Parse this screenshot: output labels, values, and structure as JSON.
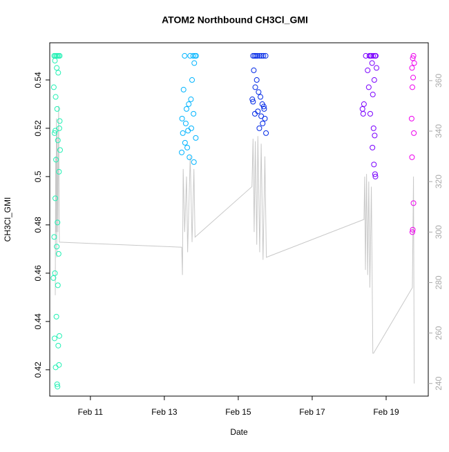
{
  "chart_data": {
    "type": "scatter",
    "title": "ATOM2 Northbound CH3Cl_GMI",
    "xlabel": "Date",
    "ylabel": "CH3Cl_GMI",
    "xlim": [
      9.9,
      20.14
    ],
    "ylim": [
      0.4091,
      0.5554
    ],
    "y2lim": [
      235,
      375
    ],
    "xticks": [
      {
        "value": 11,
        "label": "Feb 11"
      },
      {
        "value": 13,
        "label": "Feb 13"
      },
      {
        "value": 15,
        "label": "Feb 15"
      },
      {
        "value": 17,
        "label": "Feb 17"
      },
      {
        "value": 19,
        "label": "Feb 19"
      }
    ],
    "yticks": [
      0.42,
      0.44,
      0.46,
      0.48,
      0.5,
      0.52,
      0.54
    ],
    "y2ticks": [
      240,
      260,
      280,
      300,
      320,
      340,
      360
    ],
    "series": [
      {
        "color": "#22f0b4",
        "x": [
          10.02,
          10.05,
          10.08,
          10.11,
          10.14,
          10.17,
          10.04,
          10.09,
          10.13,
          10.01,
          10.06,
          10.1,
          10.16,
          10.03,
          10.12,
          10.18,
          10.07,
          10.15,
          10.05,
          10.11,
          10.02,
          10.09,
          10.14,
          10.04,
          10.0,
          10.12,
          10.08,
          10.16,
          10.03,
          10.13,
          10.15,
          10.06,
          10.1,
          10.11,
          10.17,
          10.05
        ],
        "values": [
          0.55,
          0.55,
          0.55,
          0.55,
          0.55,
          0.55,
          0.548,
          0.545,
          0.543,
          0.537,
          0.533,
          0.528,
          0.52,
          0.518,
          0.515,
          0.511,
          0.507,
          0.502,
          0.491,
          0.481,
          0.475,
          0.471,
          0.468,
          0.46,
          0.458,
          0.455,
          0.442,
          0.434,
          0.433,
          0.43,
          0.422,
          0.421,
          0.414,
          0.413,
          0.523,
          0.519
        ]
      },
      {
        "color": "#00b4ff",
        "x": [
          13.55,
          13.7,
          13.78,
          13.83,
          13.86,
          13.81,
          13.75,
          13.52,
          13.66,
          13.6,
          13.79,
          13.48,
          13.58,
          13.73,
          13.64,
          13.5,
          13.85,
          13.56,
          13.62,
          13.47,
          13.68,
          13.8,
          13.72
        ],
        "values": [
          0.55,
          0.55,
          0.55,
          0.55,
          0.55,
          0.547,
          0.54,
          0.536,
          0.53,
          0.528,
          0.526,
          0.524,
          0.522,
          0.52,
          0.519,
          0.518,
          0.516,
          0.514,
          0.512,
          0.51,
          0.508,
          0.506,
          0.532
        ]
      },
      {
        "color": "#0028e6",
        "x": [
          15.4,
          15.44,
          15.48,
          15.52,
          15.58,
          15.63,
          15.68,
          15.74,
          15.42,
          15.5,
          15.46,
          15.55,
          15.6,
          15.38,
          15.65,
          15.7,
          15.53,
          15.45,
          15.62,
          15.72,
          15.66,
          15.57,
          15.75,
          15.4,
          15.69
        ],
        "values": [
          0.55,
          0.55,
          0.55,
          0.55,
          0.55,
          0.55,
          0.55,
          0.55,
          0.544,
          0.54,
          0.537,
          0.535,
          0.533,
          0.532,
          0.53,
          0.528,
          0.527,
          0.526,
          0.525,
          0.524,
          0.522,
          0.52,
          0.518,
          0.531,
          0.529
        ]
      },
      {
        "color": "#7a00ff",
        "x": [
          18.45,
          18.55,
          18.6,
          18.65,
          18.7,
          18.72,
          18.58,
          18.62,
          18.5,
          18.68,
          18.53,
          18.64,
          18.4,
          18.36,
          18.57,
          18.66,
          18.69,
          18.63,
          18.67,
          18.7,
          18.71,
          18.38,
          18.74
        ],
        "values": [
          0.55,
          0.55,
          0.55,
          0.55,
          0.55,
          0.55,
          0.55,
          0.547,
          0.544,
          0.54,
          0.537,
          0.534,
          0.53,
          0.528,
          0.526,
          0.52,
          0.517,
          0.512,
          0.505,
          0.501,
          0.5,
          0.526,
          0.545
        ]
      },
      {
        "color": "#ee00ee",
        "x": [
          19.74,
          19.72,
          19.76,
          19.7,
          19.73,
          19.71,
          19.69,
          19.75,
          19.7,
          19.74,
          19.72,
          19.71
        ],
        "values": [
          0.55,
          0.549,
          0.547,
          0.545,
          0.541,
          0.537,
          0.524,
          0.518,
          0.508,
          0.489,
          0.478,
          0.477
        ]
      },
      {
        "color": "#c8c8c8",
        "axis": "y2",
        "x": [
          10.05,
          10.06,
          10.07,
          10.08,
          10.09,
          10.1,
          10.12,
          10.14,
          10.16,
          13.47,
          13.49,
          13.51,
          13.55,
          13.6,
          13.63,
          13.7,
          13.75,
          13.8,
          13.83,
          15.37,
          15.4,
          15.43,
          15.46,
          15.5,
          15.53,
          15.58,
          15.62,
          15.67,
          15.72,
          15.76,
          18.4,
          18.42,
          18.44,
          18.47,
          18.5,
          18.53,
          18.56,
          18.6,
          18.64,
          18.66,
          19.71,
          19.74,
          19.76
        ],
        "values": [
          275,
          330,
          300,
          345,
          290,
          340,
          300,
          350,
          296,
          294,
          283,
          325,
          300,
          322,
          292,
          330,
          296,
          325,
          298,
          318,
          337,
          300,
          336,
          295,
          338,
          292,
          335,
          289,
          330,
          290,
          305,
          322,
          285,
          323,
          283,
          320,
          278,
          318,
          252,
          252,
          278,
          322,
          240
        ]
      }
    ]
  }
}
